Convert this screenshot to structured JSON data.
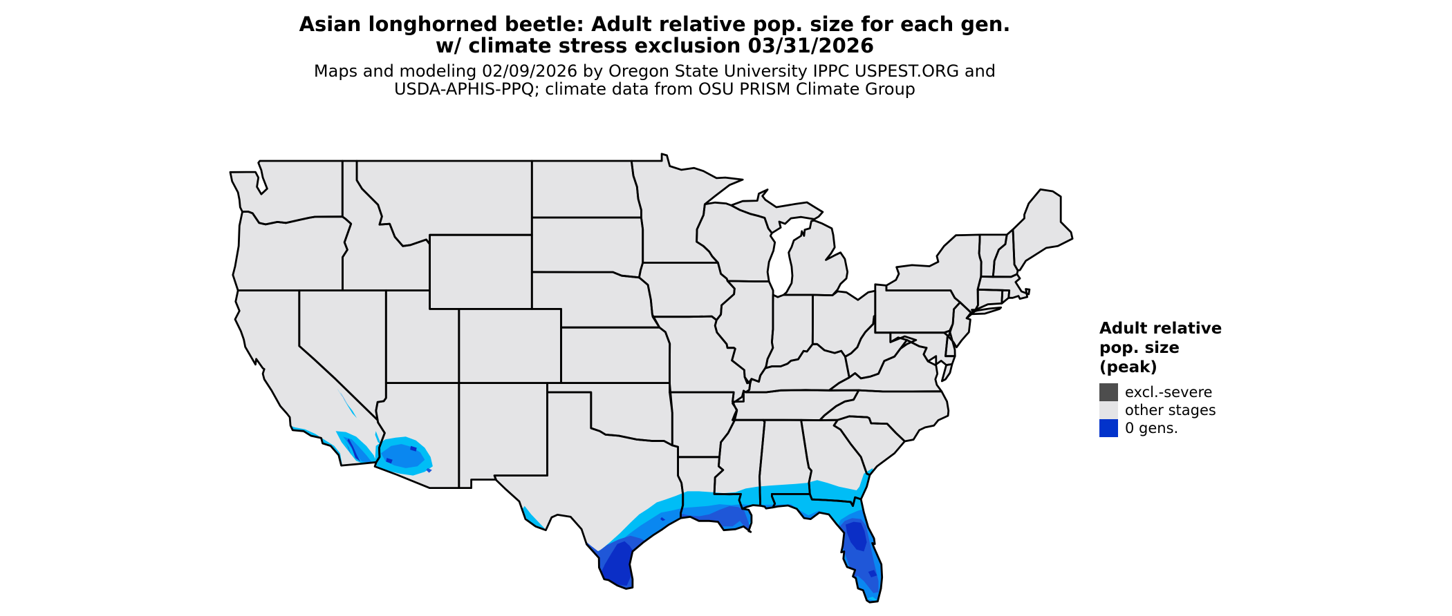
{
  "page": {
    "background": "#ffffff"
  },
  "title": {
    "line1": "Asian longhorned beetle: Adult relative pop. size for each gen.",
    "line2": "w/ climate stress exclusion 03/31/2026"
  },
  "subtitle": {
    "line1": "Maps and modeling 02/09/2026 by Oregon State University IPPC USPEST.ORG and",
    "line2": "USDA-APHIS-PPQ; climate data from OSU PRISM Climate Group"
  },
  "legend": {
    "title_line1": "Adult relative",
    "title_line2": "pop. size",
    "title_line3": "(peak)",
    "items": [
      {
        "label": "excl.-severe",
        "color": "#4d4d4d"
      },
      {
        "label": "other stages",
        "color": "#e4e4e6"
      },
      {
        "label": "0 gens.",
        "color": "#0233cb"
      }
    ]
  },
  "map": {
    "land_fill": "#e4e4e6",
    "border_color": "#000000",
    "water_color": "#ffffff",
    "palette": {
      "cyan": "#00bdf6",
      "mid": "#0a87f0",
      "royal": "#1f57d8",
      "dark": "#0b2ec6"
    }
  }
}
